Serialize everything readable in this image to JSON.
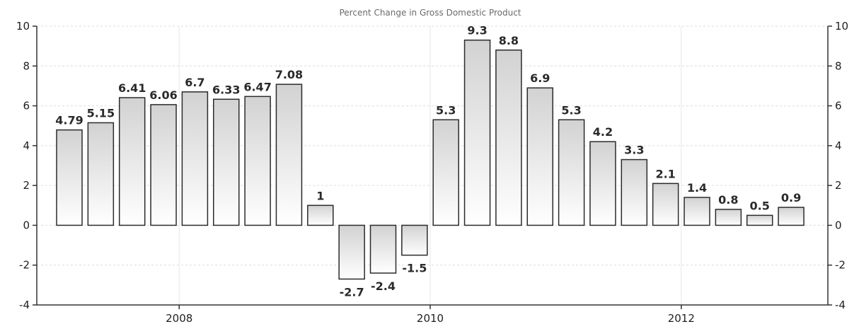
{
  "chart_data": {
    "type": "bar",
    "title": "Percent Change in Gross Domestic Product",
    "x_tick_labels": [
      "2008",
      "2010",
      "2012"
    ],
    "y_tick_labels": [
      "10",
      "8",
      "6",
      "4",
      "2",
      "0",
      "-2",
      "-4"
    ],
    "ylim": [
      -4,
      10
    ],
    "yticks": [
      10,
      8,
      6,
      4,
      2,
      0,
      -2,
      -4
    ],
    "grid": true,
    "series": [
      {
        "values": [
          4.79,
          5.15,
          6.41,
          6.06,
          6.7,
          6.33,
          6.47,
          7.08,
          1,
          -2.7,
          -2.4,
          -1.5,
          5.3,
          9.3,
          8.8,
          6.9,
          5.3,
          4.2,
          3.3,
          2.1,
          1.4,
          0.8,
          0.5,
          0.9
        ],
        "labels": [
          "4.79",
          "5.15",
          "6.41",
          "6.06",
          "6.7",
          "6.33",
          "6.47",
          "7.08",
          "1",
          "-2.7",
          "-2.4",
          "-1.5",
          "5.3",
          "9.3",
          "8.8",
          "6.9",
          "5.3",
          "4.2",
          "3.3",
          "2.1",
          "1.4",
          "0.8",
          "0.5",
          "0.9"
        ]
      }
    ],
    "bar_fill_top": "#d2d2d2",
    "bar_fill_bottom": "#ffffff",
    "bar_stroke": "#2b2b2b"
  }
}
